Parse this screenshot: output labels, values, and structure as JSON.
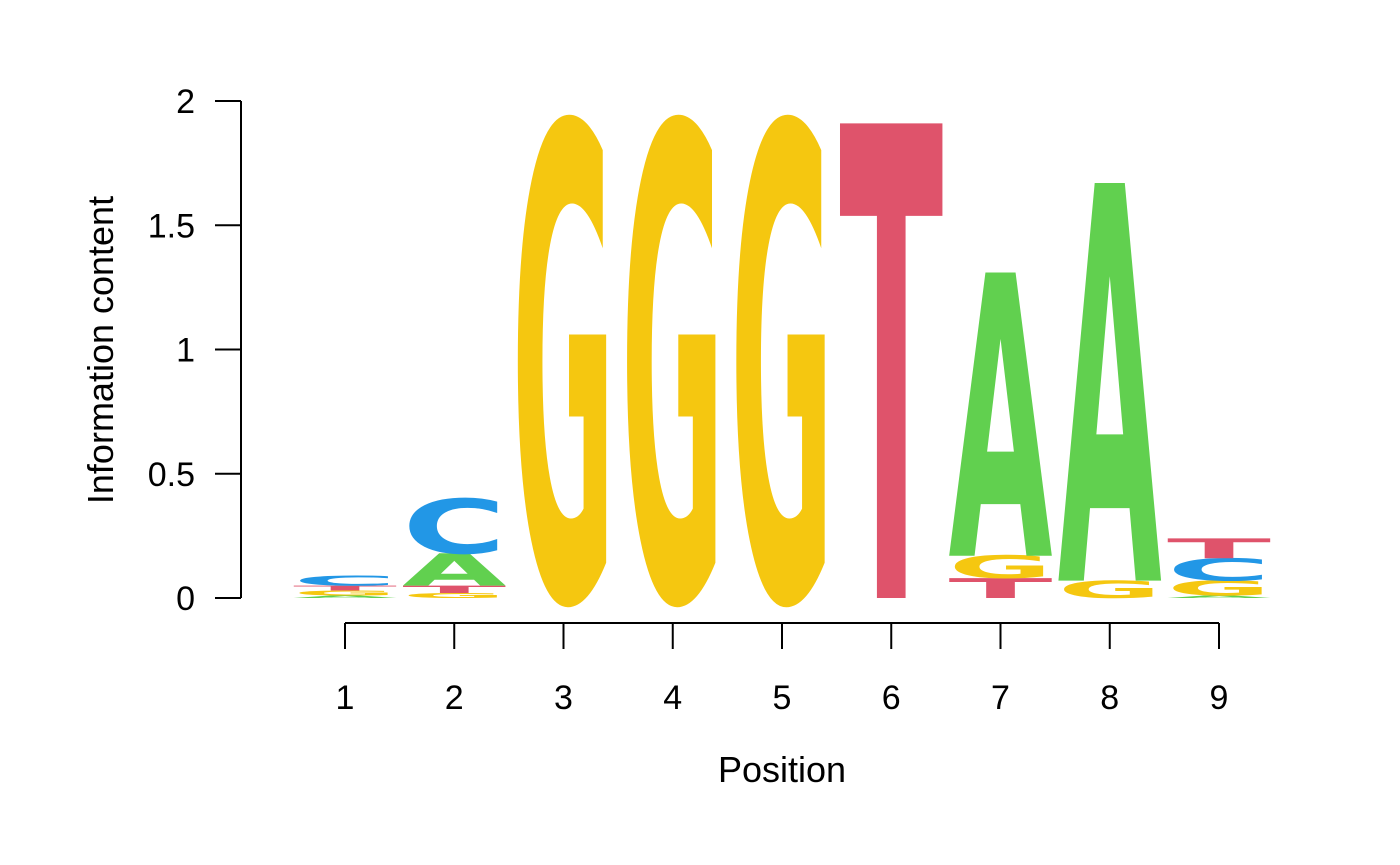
{
  "chart_data": {
    "type": "sequence-logo",
    "title": "",
    "xlabel": "Position",
    "ylabel": "Information content",
    "ylim": [
      0,
      2
    ],
    "y_ticks": [
      "0",
      "0.5",
      "1",
      "1.5",
      "2"
    ],
    "y_tick_values": [
      0,
      0.5,
      1,
      1.5,
      2
    ],
    "positions": [
      "1",
      "2",
      "3",
      "4",
      "5",
      "6",
      "7",
      "8",
      "9"
    ],
    "colors": {
      "A": "#61D04F",
      "C": "#2297E6",
      "G": "#F5C710",
      "T": "#DF536B"
    },
    "stacks": [
      [
        {
          "letter": "A",
          "value": 0.01
        },
        {
          "letter": "G",
          "value": 0.02
        },
        {
          "letter": "T",
          "value": 0.02
        },
        {
          "letter": "C",
          "value": 0.04
        }
      ],
      [
        {
          "letter": "G",
          "value": 0.02
        },
        {
          "letter": "T",
          "value": 0.03
        },
        {
          "letter": "A",
          "value": 0.13
        },
        {
          "letter": "C",
          "value": 0.22
        }
      ],
      [
        {
          "letter": "G",
          "value": 1.91
        }
      ],
      [
        {
          "letter": "G",
          "value": 1.91
        }
      ],
      [
        {
          "letter": "G",
          "value": 1.91
        }
      ],
      [
        {
          "letter": "T",
          "value": 1.91
        }
      ],
      [
        {
          "letter": "T",
          "value": 0.08
        },
        {
          "letter": "G",
          "value": 0.09
        },
        {
          "letter": "A",
          "value": 1.14
        }
      ],
      [
        {
          "letter": "G",
          "value": 0.07
        },
        {
          "letter": "A",
          "value": 1.6
        }
      ],
      [
        {
          "letter": "A",
          "value": 0.01
        },
        {
          "letter": "G",
          "value": 0.06
        },
        {
          "letter": "C",
          "value": 0.09
        },
        {
          "letter": "T",
          "value": 0.08
        }
      ]
    ]
  }
}
